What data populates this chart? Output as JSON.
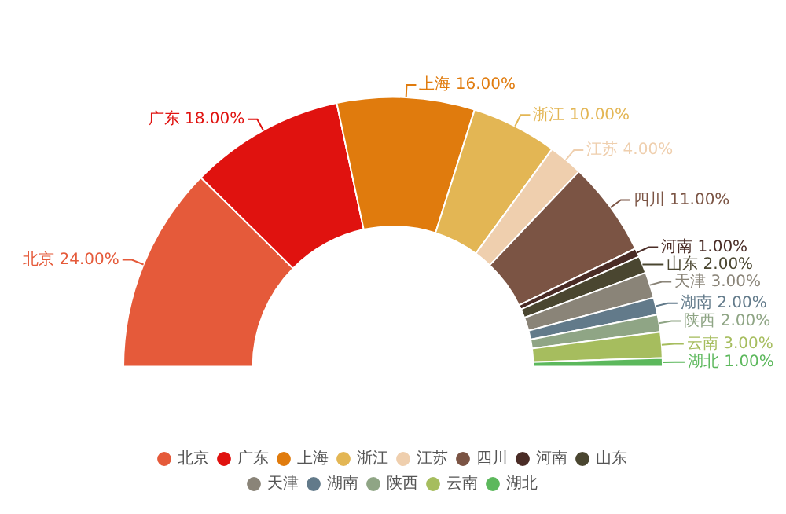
{
  "chart_data": {
    "type": "donut",
    "categories": [
      "北京",
      "广东",
      "上海",
      "浙江",
      "江苏",
      "四川",
      "河南",
      "山东",
      "天津",
      "湖南",
      "陕西",
      "云南",
      "湖北"
    ],
    "values": [
      24,
      18,
      16,
      10,
      4,
      11,
      1,
      2,
      3,
      2,
      2,
      3,
      1
    ],
    "colors": [
      "#e55a3a",
      "#e0120f",
      "#e07b0d",
      "#e3b654",
      "#efcfae",
      "#7b5444",
      "#4a2c26",
      "#4a4630",
      "#8a8478",
      "#627a8a",
      "#8fa585",
      "#a6bd5e",
      "#5cb85c"
    ],
    "value_labels": [
      "北京 24.00%",
      "广东 18.00%",
      "上海 16.00%",
      "浙江 10.00%",
      "江苏 4.00%",
      "四川 11.00%",
      "河南 1.00%",
      "山东 2.00%",
      "天津 3.00%",
      "湖南 2.00%",
      "陕西 2.00%",
      "云南 3.00%",
      "湖北 1.00%"
    ],
    "legend": "bottom"
  }
}
